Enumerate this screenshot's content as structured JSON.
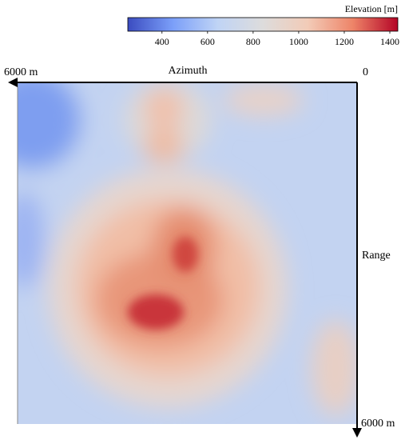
{
  "colorbar": {
    "label": "Elevation [m]",
    "lim": [
      250,
      1435
    ],
    "ticks": [
      400,
      600,
      800,
      1000,
      1200,
      1400
    ],
    "colormap": [
      "#3b4cc0",
      "#7b9ff9",
      "#c0d4f5",
      "#dddcdc",
      "#f2cbb7",
      "#ee8468",
      "#b40426"
    ]
  },
  "axes": {
    "azimuth_label": "Azimuth",
    "azimuth_start": "6000 m",
    "origin": "0",
    "range_label": "Range",
    "range_end": "6000 m"
  }
}
